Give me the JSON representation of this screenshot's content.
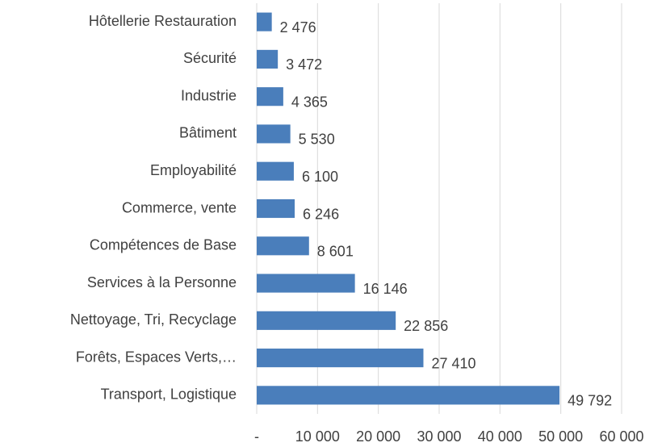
{
  "chart_data": {
    "type": "bar",
    "orientation": "horizontal",
    "categories": [
      "Hôtellerie Restauration",
      "Sécurité",
      "Industrie",
      "Bâtiment",
      "Employabilité",
      "Commerce, vente",
      "Compétences de Base",
      "Services à la Personne",
      "Nettoyage, Tri, Recyclage",
      "Forêts, Espaces Verts,…",
      "Transport, Logistique"
    ],
    "values": [
      2476,
      3472,
      4365,
      5530,
      6100,
      6246,
      8601,
      16146,
      22856,
      27410,
      49792
    ],
    "value_labels": [
      "2 476",
      "3 472",
      "4 365",
      "5 530",
      "6 100",
      "6 246",
      "8 601",
      "16 146",
      "22 856",
      "27 410",
      "49 792"
    ],
    "color": "#4a7ebb",
    "xlim": [
      0,
      60000
    ],
    "xticks": [
      {
        "value": 0,
        "label": "-"
      },
      {
        "value": 10000,
        "label": "10 000"
      },
      {
        "value": 20000,
        "label": "20 000"
      },
      {
        "value": 30000,
        "label": "30 000"
      },
      {
        "value": 40000,
        "label": "40 000"
      },
      {
        "value": 50000,
        "label": "50 000"
      },
      {
        "value": 60000,
        "label": "60 000"
      }
    ],
    "grid": true
  }
}
